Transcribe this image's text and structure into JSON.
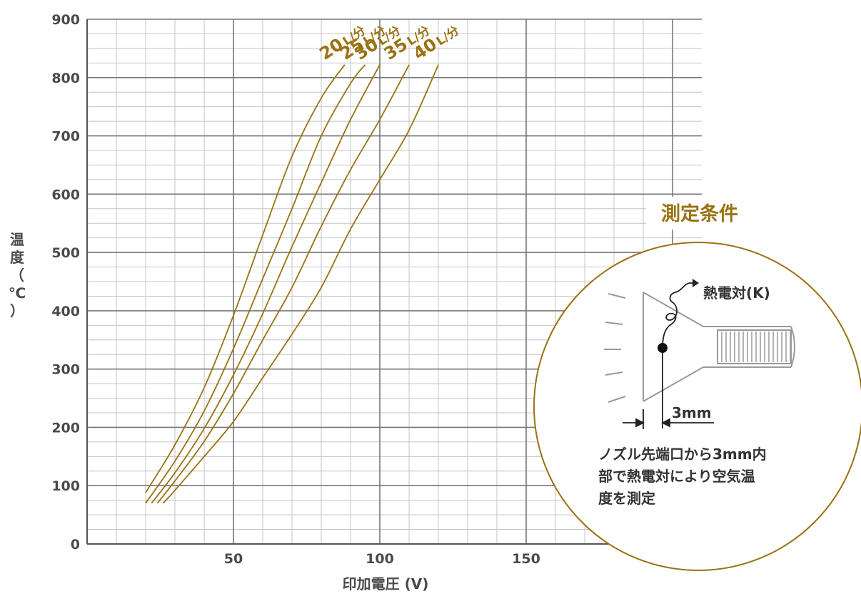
{
  "chart_data": {
    "type": "line",
    "xlabel": "印加電圧 (V)",
    "ylabel_lines": [
      "温",
      "度",
      "（",
      "℃",
      "）"
    ],
    "xlim": [
      0,
      210
    ],
    "ylim": [
      0,
      900
    ],
    "x_ticks": [
      50,
      100,
      150
    ],
    "y_ticks": [
      0,
      100,
      200,
      300,
      400,
      500,
      600,
      700,
      800,
      900
    ],
    "grid": true,
    "line_color": "#9a7212",
    "series": [
      {
        "name": "20 L/分",
        "points": [
          [
            20,
            88
          ],
          [
            30,
            170
          ],
          [
            40,
            268
          ],
          [
            50,
            392
          ],
          [
            60,
            530
          ],
          [
            70,
            665
          ],
          [
            80,
            765
          ],
          [
            88,
            822
          ]
        ]
      },
      {
        "name": "25 L/分",
        "points": [
          [
            20,
            70
          ],
          [
            30,
            142
          ],
          [
            40,
            228
          ],
          [
            50,
            335
          ],
          [
            60,
            455
          ],
          [
            70,
            575
          ],
          [
            80,
            700
          ],
          [
            90,
            790
          ],
          [
            95,
            822
          ]
        ]
      },
      {
        "name": "30 L/分",
        "points": [
          [
            22,
            70
          ],
          [
            30,
            122
          ],
          [
            40,
            198
          ],
          [
            50,
            290
          ],
          [
            60,
            395
          ],
          [
            70,
            510
          ],
          [
            80,
            620
          ],
          [
            90,
            728
          ],
          [
            100,
            822
          ]
        ]
      },
      {
        "name": "35 L/分",
        "points": [
          [
            24,
            70
          ],
          [
            30,
            108
          ],
          [
            40,
            176
          ],
          [
            50,
            258
          ],
          [
            60,
            350
          ],
          [
            70,
            440
          ],
          [
            80,
            545
          ],
          [
            90,
            642
          ],
          [
            100,
            728
          ],
          [
            110,
            822
          ]
        ]
      },
      {
        "name": "40 L/分",
        "points": [
          [
            26,
            70
          ],
          [
            30,
            92
          ],
          [
            40,
            150
          ],
          [
            50,
            210
          ],
          [
            60,
            285
          ],
          [
            70,
            360
          ],
          [
            80,
            440
          ],
          [
            90,
            540
          ],
          [
            100,
            625
          ],
          [
            110,
            710
          ],
          [
            120,
            822
          ]
        ]
      }
    ]
  },
  "conditions": {
    "title": "測定条件",
    "sensor_label": "熱電対(K)",
    "distance_label": "3mm",
    "description_lines": [
      "ノズル先端口から3mm内",
      "部で熱電対により空気温",
      "度を測定"
    ],
    "accent_color": "#9a7212"
  }
}
